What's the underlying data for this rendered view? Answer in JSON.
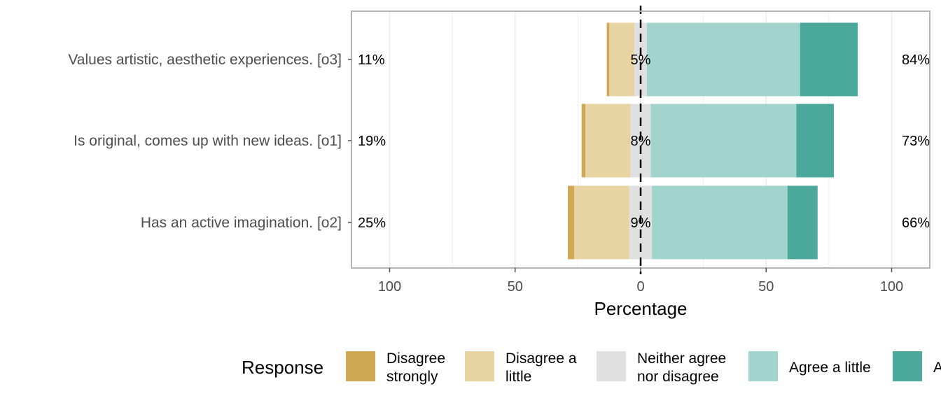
{
  "chart_data": {
    "type": "bar",
    "orientation": "horizontal-diverging",
    "xlabel": "Percentage",
    "xlim": [
      -100,
      100
    ],
    "xticks": [
      {
        "value": -100,
        "label": "100"
      },
      {
        "value": -50,
        "label": "50"
      },
      {
        "value": 0,
        "label": "0"
      },
      {
        "value": 50,
        "label": "50"
      },
      {
        "value": 100,
        "label": "100"
      }
    ],
    "categories": [
      "Values artistic, aesthetic experiences. [o3]",
      "Is original, comes up with new ideas. [o1]",
      "Has an active imagination. [o2]"
    ],
    "series": [
      {
        "name": "Disagree strongly",
        "color": "#D0A854",
        "values": [
          1,
          1.5,
          2.5
        ]
      },
      {
        "name": "Disagree a little",
        "color": "#E8D3A2",
        "values": [
          10,
          18,
          22
        ]
      },
      {
        "name": "Neither agree nor disagree",
        "color": "#E0E0E0",
        "values": [
          5,
          8,
          9
        ]
      },
      {
        "name": "Agree a little",
        "color": "#A1D4CD",
        "values": [
          61,
          58,
          54
        ]
      },
      {
        "name": "Agree strongly",
        "color": "#4BA99C",
        "values": [
          23,
          15,
          12
        ]
      }
    ],
    "left_labels": [
      "11%",
      "19%",
      "25%"
    ],
    "center_labels": [
      "5%",
      "8%",
      "9%"
    ],
    "right_labels": [
      "84%",
      "73%",
      "66%"
    ],
    "legend": {
      "title": "Response",
      "position": "bottom",
      "entries": [
        {
          "lines": [
            "Disagree",
            "strongly"
          ],
          "color": "#D0A854"
        },
        {
          "lines": [
            "Disagree a",
            "little"
          ],
          "color": "#E8D3A2"
        },
        {
          "lines": [
            "Neither agree",
            "nor disagree"
          ],
          "color": "#E0E0E0"
        },
        {
          "lines": [
            "Agree a little"
          ],
          "color": "#A1D4CD"
        },
        {
          "lines": [
            "Agree strongly"
          ],
          "color": "#4BA99C"
        }
      ]
    },
    "grid": true
  }
}
